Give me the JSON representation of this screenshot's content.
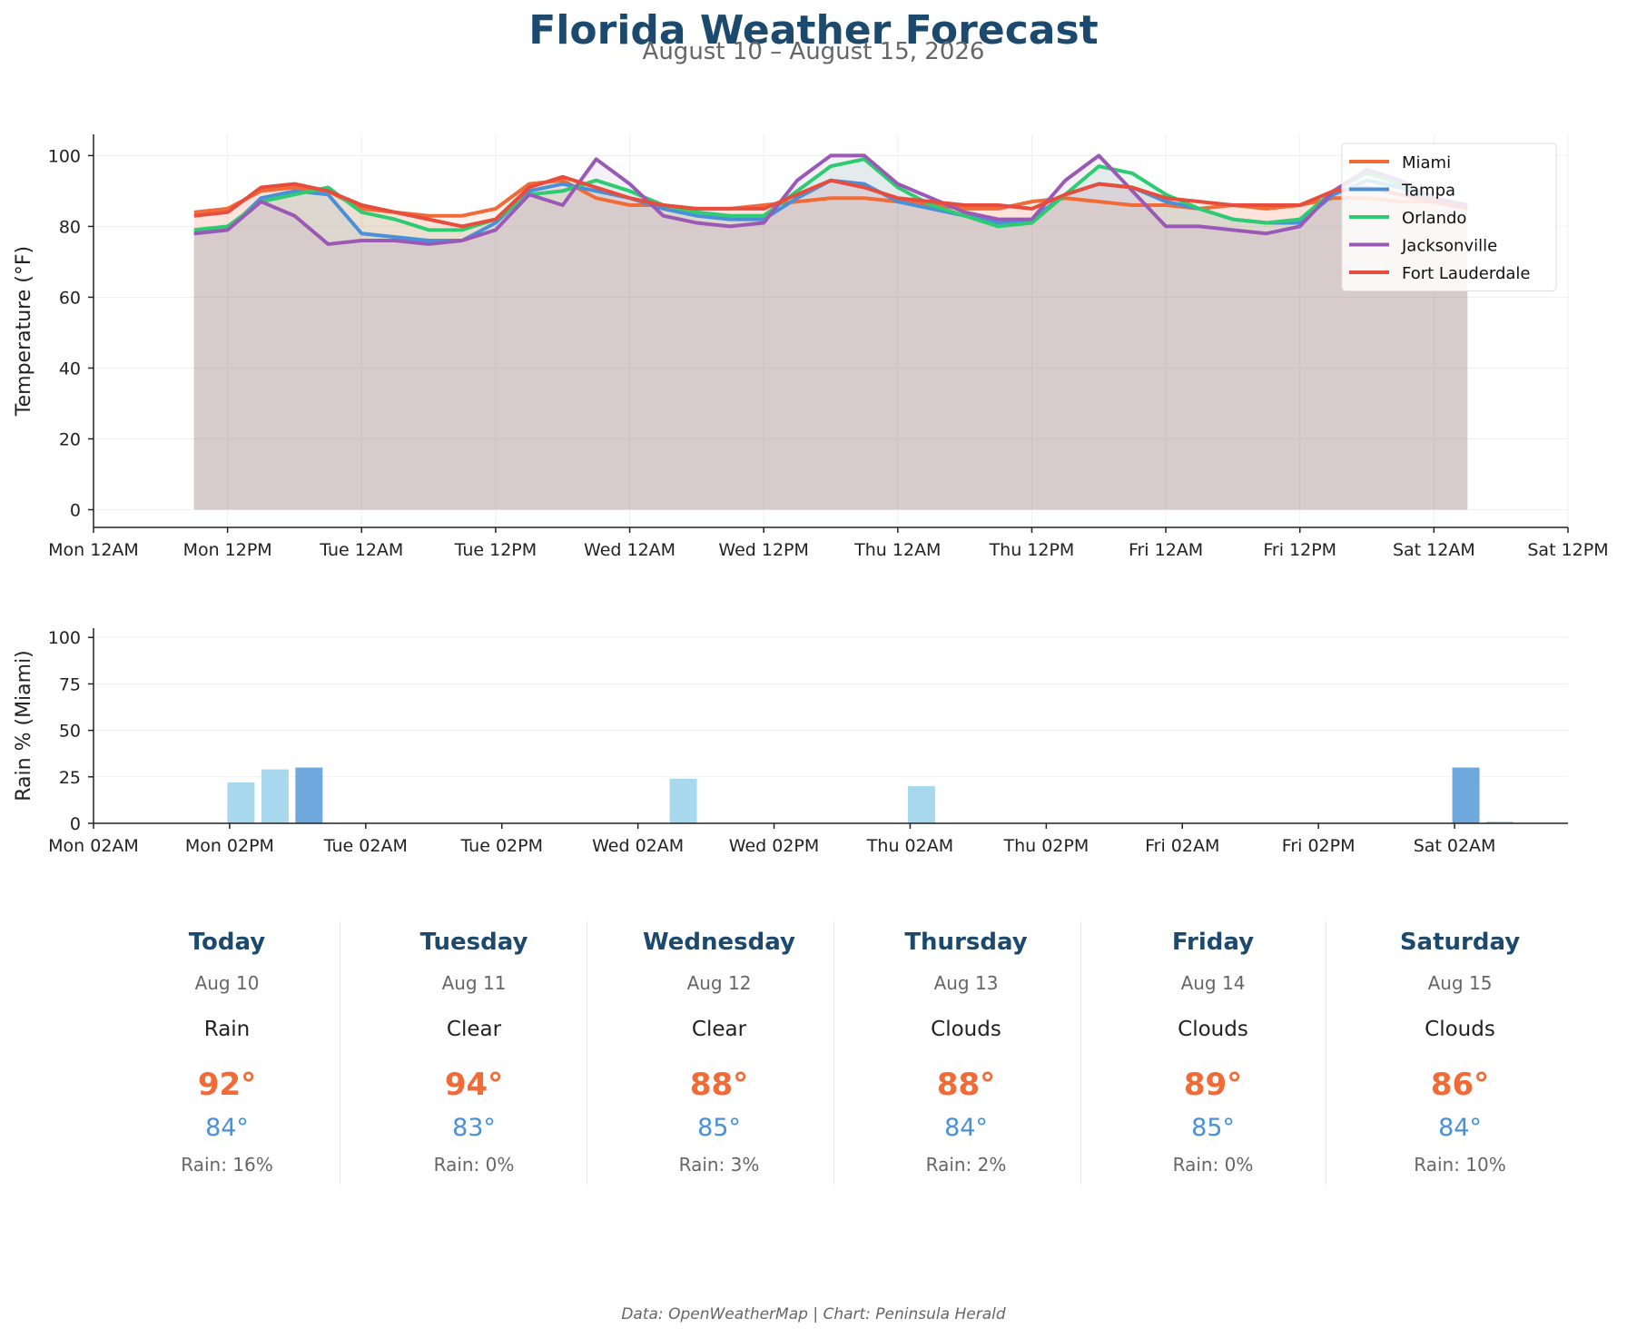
{
  "header": {
    "title": "Florida Weather Forecast",
    "subtitle": "August 10 – August 15, 2026"
  },
  "chart_data": [
    {
      "type": "line",
      "xlabel": "",
      "ylabel": "Temperature (°F)",
      "ylim": [
        -5,
        106
      ],
      "yticks": [
        0,
        20,
        40,
        60,
        80,
        100
      ],
      "x_unit": "hours from Mon 12AM",
      "xlim": [
        0,
        132
      ],
      "xticks": [
        "Mon 12AM",
        "Mon 12PM",
        "Tue 12AM",
        "Tue 12PM",
        "Wed 12AM",
        "Wed 12PM",
        "Thu 12AM",
        "Thu 12PM",
        "Fri 12AM",
        "Fri 12PM",
        "Sat 12AM",
        "Sat 12PM"
      ],
      "area_fill": true,
      "grid": true,
      "legend_position": "top-right",
      "x": [
        9,
        12,
        15,
        18,
        21,
        24,
        27,
        30,
        33,
        36,
        39,
        42,
        45,
        48,
        51,
        54,
        57,
        60,
        63,
        66,
        69,
        72,
        75,
        78,
        81,
        84,
        87,
        90,
        93,
        96,
        99,
        102,
        105,
        108,
        111,
        114,
        117,
        120,
        123
      ],
      "series": [
        {
          "name": "Miami",
          "color": "#f26a35",
          "values": [
            84,
            85,
            90,
            91,
            90,
            85,
            84,
            83,
            83,
            85,
            92,
            93,
            88,
            86,
            86,
            85,
            85,
            86,
            87,
            88,
            88,
            87,
            86,
            85,
            85,
            87,
            88,
            87,
            86,
            86,
            85,
            86,
            85,
            86,
            88,
            88,
            87,
            87,
            86
          ]
        },
        {
          "name": "Tampa",
          "color": "#4a90d9",
          "values": [
            78,
            79,
            88,
            90,
            89,
            78,
            77,
            76,
            76,
            81,
            90,
            92,
            90,
            88,
            85,
            83,
            82,
            82,
            88,
            93,
            92,
            87,
            85,
            83,
            81,
            82,
            89,
            92,
            91,
            87,
            85,
            82,
            81,
            81,
            89,
            93,
            91,
            87,
            85
          ]
        },
        {
          "name": "Orlando",
          "color": "#2ecc71",
          "values": [
            79,
            80,
            87,
            89,
            91,
            84,
            82,
            79,
            79,
            82,
            89,
            90,
            93,
            90,
            86,
            84,
            83,
            83,
            90,
            97,
            99,
            91,
            86,
            83,
            80,
            81,
            89,
            97,
            95,
            89,
            85,
            82,
            81,
            82,
            90,
            95,
            92,
            88,
            85
          ]
        },
        {
          "name": "Jacksonville",
          "color": "#9b59b6",
          "values": [
            78,
            79,
            87,
            83,
            75,
            76,
            76,
            75,
            76,
            79,
            89,
            86,
            99,
            92,
            83,
            81,
            80,
            81,
            93,
            100,
            100,
            92,
            88,
            84,
            82,
            82,
            93,
            100,
            90,
            80,
            80,
            79,
            78,
            80,
            90,
            96,
            93,
            88,
            86
          ]
        },
        {
          "name": "Fort Lauderdale",
          "color": "#e74c3c",
          "values": [
            83,
            84,
            91,
            92,
            90,
            86,
            84,
            82,
            80,
            82,
            91,
            94,
            91,
            88,
            86,
            85,
            85,
            85,
            89,
            93,
            91,
            88,
            87,
            86,
            86,
            85,
            89,
            92,
            91,
            88,
            87,
            86,
            86,
            86,
            90,
            91,
            89,
            87,
            85
          ]
        }
      ]
    },
    {
      "type": "bar",
      "xlabel": "",
      "ylabel": "Rain % (Miami)",
      "ylim": [
        0,
        105
      ],
      "yticks": [
        0,
        25,
        50,
        75,
        100
      ],
      "x_unit": "hours from Mon 02AM",
      "xlim": [
        0,
        130
      ],
      "xticks": [
        "Mon 02AM",
        "Mon 02PM",
        "Tue 02AM",
        "Tue 02PM",
        "Wed 02AM",
        "Wed 02PM",
        "Thu 02AM",
        "Thu 02PM",
        "Fri 02AM",
        "Fri 02PM",
        "Sat 02AM"
      ],
      "grid": true,
      "bar_colors": {
        "light": "#a8d8ee",
        "strong": "#6fa8dc"
      },
      "bars": [
        {
          "x": 13,
          "value": 22,
          "shade": "light"
        },
        {
          "x": 16,
          "value": 29,
          "shade": "light"
        },
        {
          "x": 19,
          "value": 30,
          "shade": "strong"
        },
        {
          "x": 52,
          "value": 24,
          "shade": "light"
        },
        {
          "x": 73,
          "value": 20,
          "shade": "light"
        },
        {
          "x": 121,
          "value": 30,
          "shade": "strong"
        },
        {
          "x": 124,
          "value": 1,
          "shade": "light"
        }
      ]
    }
  ],
  "forecast": [
    {
      "day": "Today",
      "date": "Aug 10",
      "condition": "Rain",
      "high": "92°",
      "low": "84°",
      "rain": "Rain: 16%"
    },
    {
      "day": "Tuesday",
      "date": "Aug 11",
      "condition": "Clear",
      "high": "94°",
      "low": "83°",
      "rain": "Rain: 0%"
    },
    {
      "day": "Wednesday",
      "date": "Aug 12",
      "condition": "Clear",
      "high": "88°",
      "low": "85°",
      "rain": "Rain: 3%"
    },
    {
      "day": "Thursday",
      "date": "Aug 13",
      "condition": "Clouds",
      "high": "88°",
      "low": "84°",
      "rain": "Rain: 2%"
    },
    {
      "day": "Friday",
      "date": "Aug 14",
      "condition": "Clouds",
      "high": "89°",
      "low": "85°",
      "rain": "Rain: 0%"
    },
    {
      "day": "Saturday",
      "date": "Aug 15",
      "condition": "Clouds",
      "high": "86°",
      "low": "84°",
      "rain": "Rain: 10%"
    }
  ],
  "footer": "Data: OpenWeatherMap | Chart: Peninsula Herald"
}
